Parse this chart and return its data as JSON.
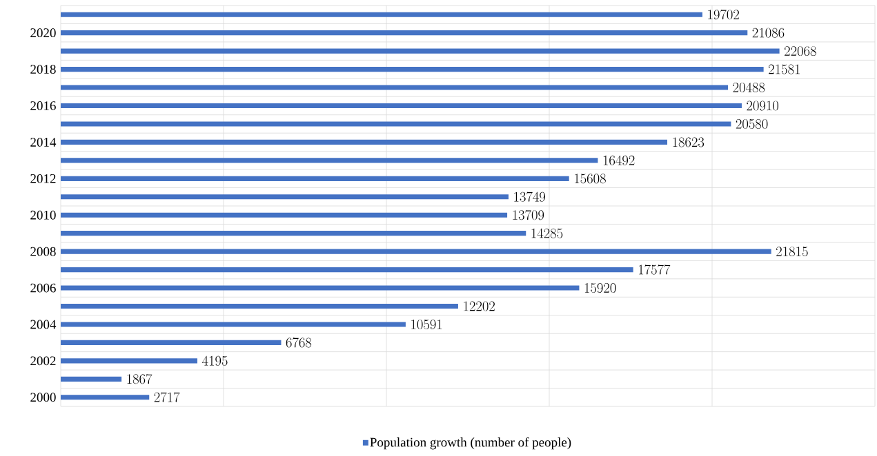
{
  "chart_data": {
    "type": "bar",
    "orientation": "horizontal",
    "categories": [
      null,
      "2020",
      null,
      "2018",
      null,
      "2016",
      null,
      "2014",
      null,
      "2012",
      null,
      "2010",
      null,
      "2008",
      null,
      "2006",
      null,
      "2004",
      null,
      "2002",
      null,
      "2000"
    ],
    "series": [
      {
        "name": "Population growth (number of people)",
        "color": "#4472c4",
        "values": [
          19702,
          21086,
          22068,
          21581,
          20488,
          20910,
          20580,
          18623,
          16492,
          15608,
          13749,
          13709,
          14285,
          21815,
          17577,
          15920,
          12202,
          10591,
          6768,
          4195,
          1867,
          2717
        ]
      }
    ],
    "xlim": [
      0,
      25000
    ],
    "xticks": [
      {
        "value": 0,
        "label": null
      },
      {
        "value": 5000,
        "label": null
      },
      {
        "value": 10000,
        "label": null
      },
      {
        "value": 15000,
        "label": null
      },
      {
        "value": 20000,
        "label": null
      },
      {
        "value": 25000,
        "label": null
      }
    ],
    "tick_labels": "y",
    "grid": true,
    "legend": "bottom",
    "data_labels": true
  }
}
